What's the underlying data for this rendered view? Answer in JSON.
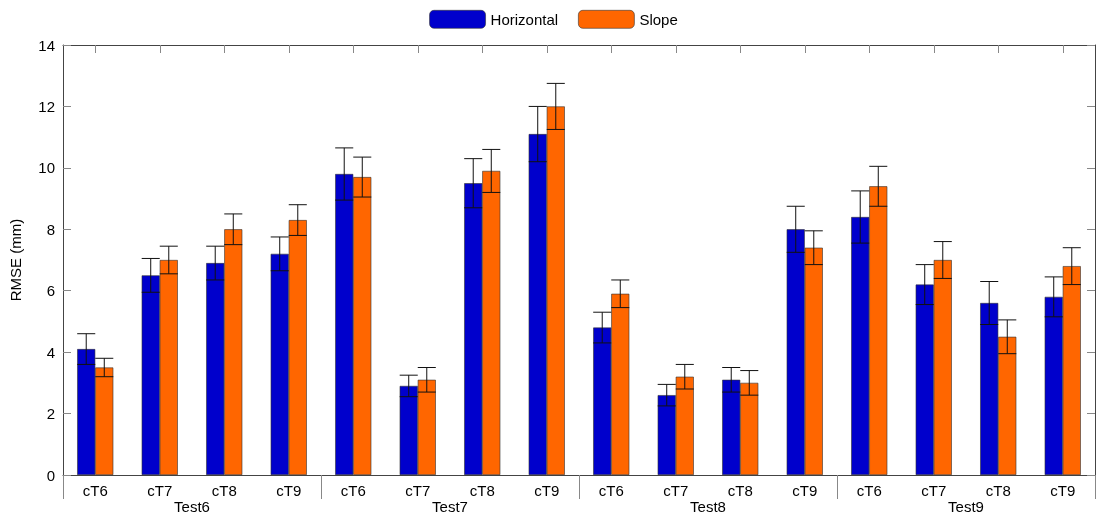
{
  "chart_data": {
    "type": "bar",
    "ylabel": "RMSE (mm)",
    "categories": [
      "cT6",
      "cT7",
      "cT8",
      "cT9",
      "cT6",
      "cT7",
      "cT8",
      "cT9",
      "cT6",
      "cT7",
      "cT8",
      "cT9",
      "cT6",
      "cT7",
      "cT8",
      "cT9"
    ],
    "series": [
      {
        "name": "Horizontal",
        "color": "#0000cc",
        "values": [
          4.1,
          6.5,
          6.9,
          7.2,
          9.8,
          2.9,
          9.5,
          11.1,
          4.8,
          2.6,
          3.1,
          8.0,
          8.4,
          6.2,
          5.6,
          5.8
        ],
        "errors": [
          0.5,
          0.55,
          0.55,
          0.55,
          0.85,
          0.35,
          0.8,
          0.9,
          0.5,
          0.35,
          0.4,
          0.75,
          0.85,
          0.65,
          0.7,
          0.65
        ]
      },
      {
        "name": "Slope",
        "color": "#ff6600",
        "values": [
          3.5,
          7.0,
          8.0,
          8.3,
          9.7,
          3.1,
          9.9,
          12.0,
          5.9,
          3.2,
          3.0,
          7.4,
          9.4,
          7.0,
          4.5,
          6.8
        ],
        "errors": [
          0.3,
          0.45,
          0.5,
          0.5,
          0.65,
          0.4,
          0.7,
          0.75,
          0.45,
          0.4,
          0.4,
          0.55,
          0.65,
          0.6,
          0.55,
          0.6
        ]
      }
    ],
    "annotations": [
      "Test6",
      "Test7",
      "Test8",
      "Test9"
    ],
    "ylim": [
      0,
      14
    ],
    "yticks": [
      0,
      2,
      4,
      6,
      8,
      10,
      12,
      14
    ],
    "grid": false,
    "legend": "top"
  }
}
